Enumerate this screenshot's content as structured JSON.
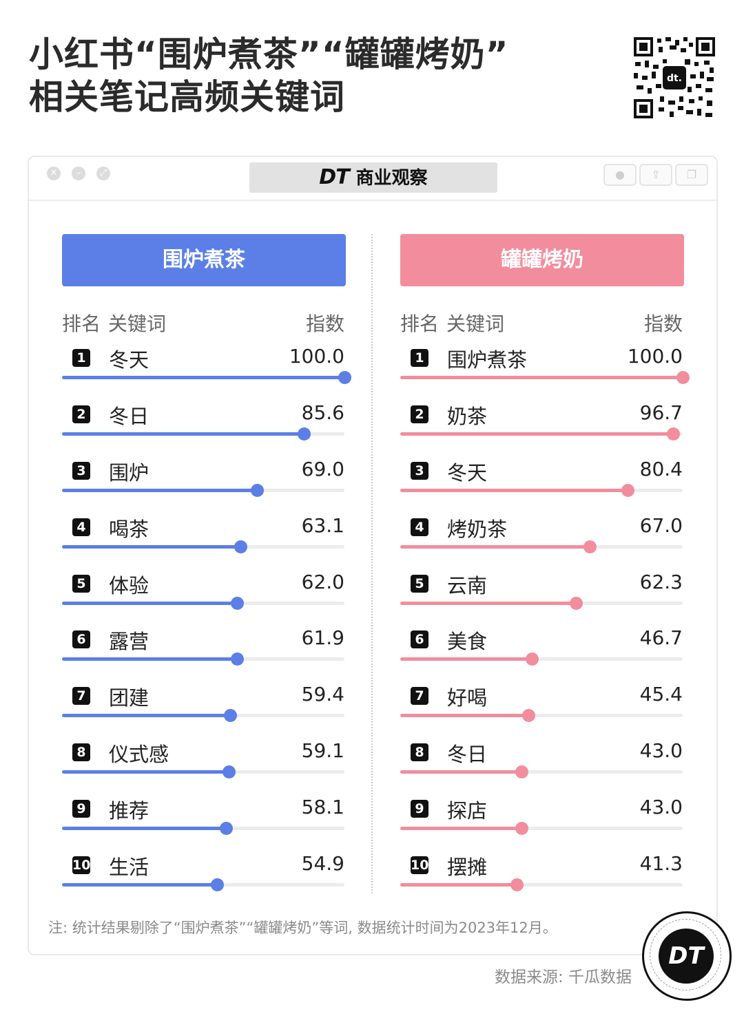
{
  "header": {
    "title_line1": "小红书“围炉煮茶”“罐罐烤奶”",
    "title_line2": "相关笔记高频关键词"
  },
  "qr": {
    "label": "dt."
  },
  "window": {
    "brand_dt": "DT",
    "brand_name": "商业观察"
  },
  "colors": {
    "left_accent": "#5b7fe6",
    "right_accent": "#f28d9e",
    "track": "#ececec"
  },
  "columns": {
    "rank": "排名",
    "keyword": "关键词",
    "index": "指数"
  },
  "chart_data": [
    {
      "type": "bar",
      "title": "围炉煮茶",
      "ylim": [
        0,
        100
      ],
      "categories": [
        "冬天",
        "冬日",
        "围炉",
        "喝茶",
        "体验",
        "露营",
        "团建",
        "仪式感",
        "推荐",
        "生活"
      ],
      "value_labels": [
        "100.0",
        "85.6",
        "69.0",
        "63.1",
        "62.0",
        "61.9",
        "59.4",
        "59.1",
        "58.1",
        "54.9"
      ],
      "values": [
        100.0,
        85.6,
        69.0,
        63.1,
        62.0,
        61.9,
        59.4,
        59.1,
        58.1,
        54.9
      ],
      "ranks": [
        "1",
        "2",
        "3",
        "4",
        "5",
        "6",
        "7",
        "8",
        "9",
        "10"
      ]
    },
    {
      "type": "bar",
      "title": "罐罐烤奶",
      "ylim": [
        0,
        100
      ],
      "categories": [
        "围炉煮茶",
        "奶茶",
        "冬天",
        "烤奶茶",
        "云南",
        "美食",
        "好喝",
        "冬日",
        "探店",
        "摆摊"
      ],
      "value_labels": [
        "100.0",
        "96.7",
        "80.4",
        "67.0",
        "62.3",
        "46.7",
        "45.4",
        "43.0",
        "43.0",
        "41.3"
      ],
      "values": [
        100.0,
        96.7,
        80.4,
        67.0,
        62.3,
        46.7,
        45.4,
        43.0,
        43.0,
        41.3
      ],
      "ranks": [
        "1",
        "2",
        "3",
        "4",
        "5",
        "6",
        "7",
        "8",
        "9",
        "10"
      ]
    }
  ],
  "footer": {
    "note": "注: 统计结果剔除了“围炉煮茶”“罐罐烤奶”等词, 数据统计时间为2023年12月。",
    "source": "数据来源: 千瓜数据",
    "logo": "DT"
  }
}
